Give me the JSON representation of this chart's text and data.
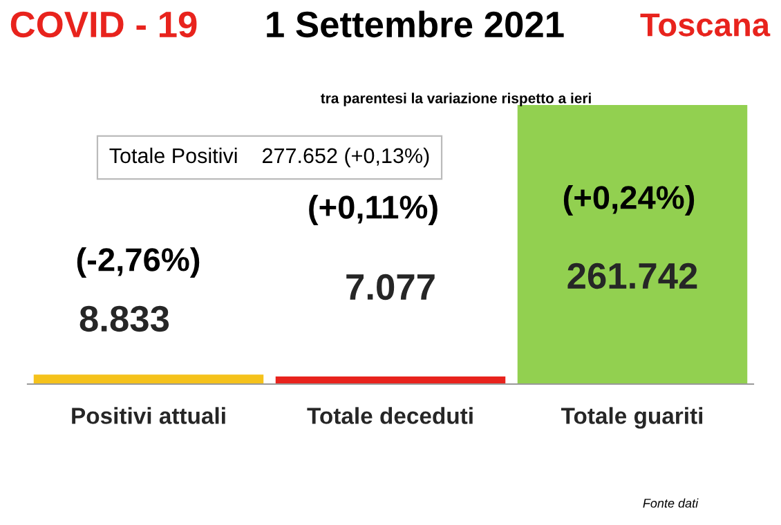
{
  "chart_data": {
    "type": "bar",
    "title": "COVID - 19",
    "subtitle": "1 Settembre 2021",
    "categories": [
      "Positivi attuali",
      "Totale deceduti",
      "Totale guariti"
    ],
    "values": [
      8833,
      7077,
      261742
    ],
    "colors": [
      "#f5c21b",
      "#e8231d",
      "#92d050"
    ],
    "value_labels": [
      "8.833",
      "7.077",
      "261.742"
    ],
    "annotations": [
      "Toscana",
      "tra parentesi la variazione rispetto a ieri",
      "Totale Positivi    277.652 (+0,13%)",
      "(-2,76%)",
      "(+0,11%)",
      "(+0,24%)",
      "Fonte dati"
    ],
    "grid": false,
    "legend": false
  }
}
